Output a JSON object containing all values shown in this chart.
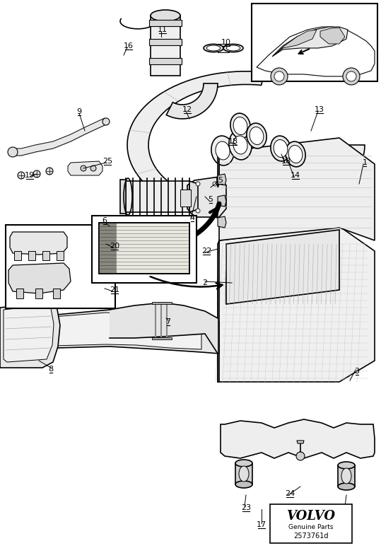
{
  "bg": "#ffffff",
  "lc": "#000000",
  "volvo_text": "VOLVO",
  "genuine_parts": "Genuine Parts",
  "part_code": "2573761d",
  "figsize": [
    5.39,
    7.82
  ],
  "dpi": 100
}
